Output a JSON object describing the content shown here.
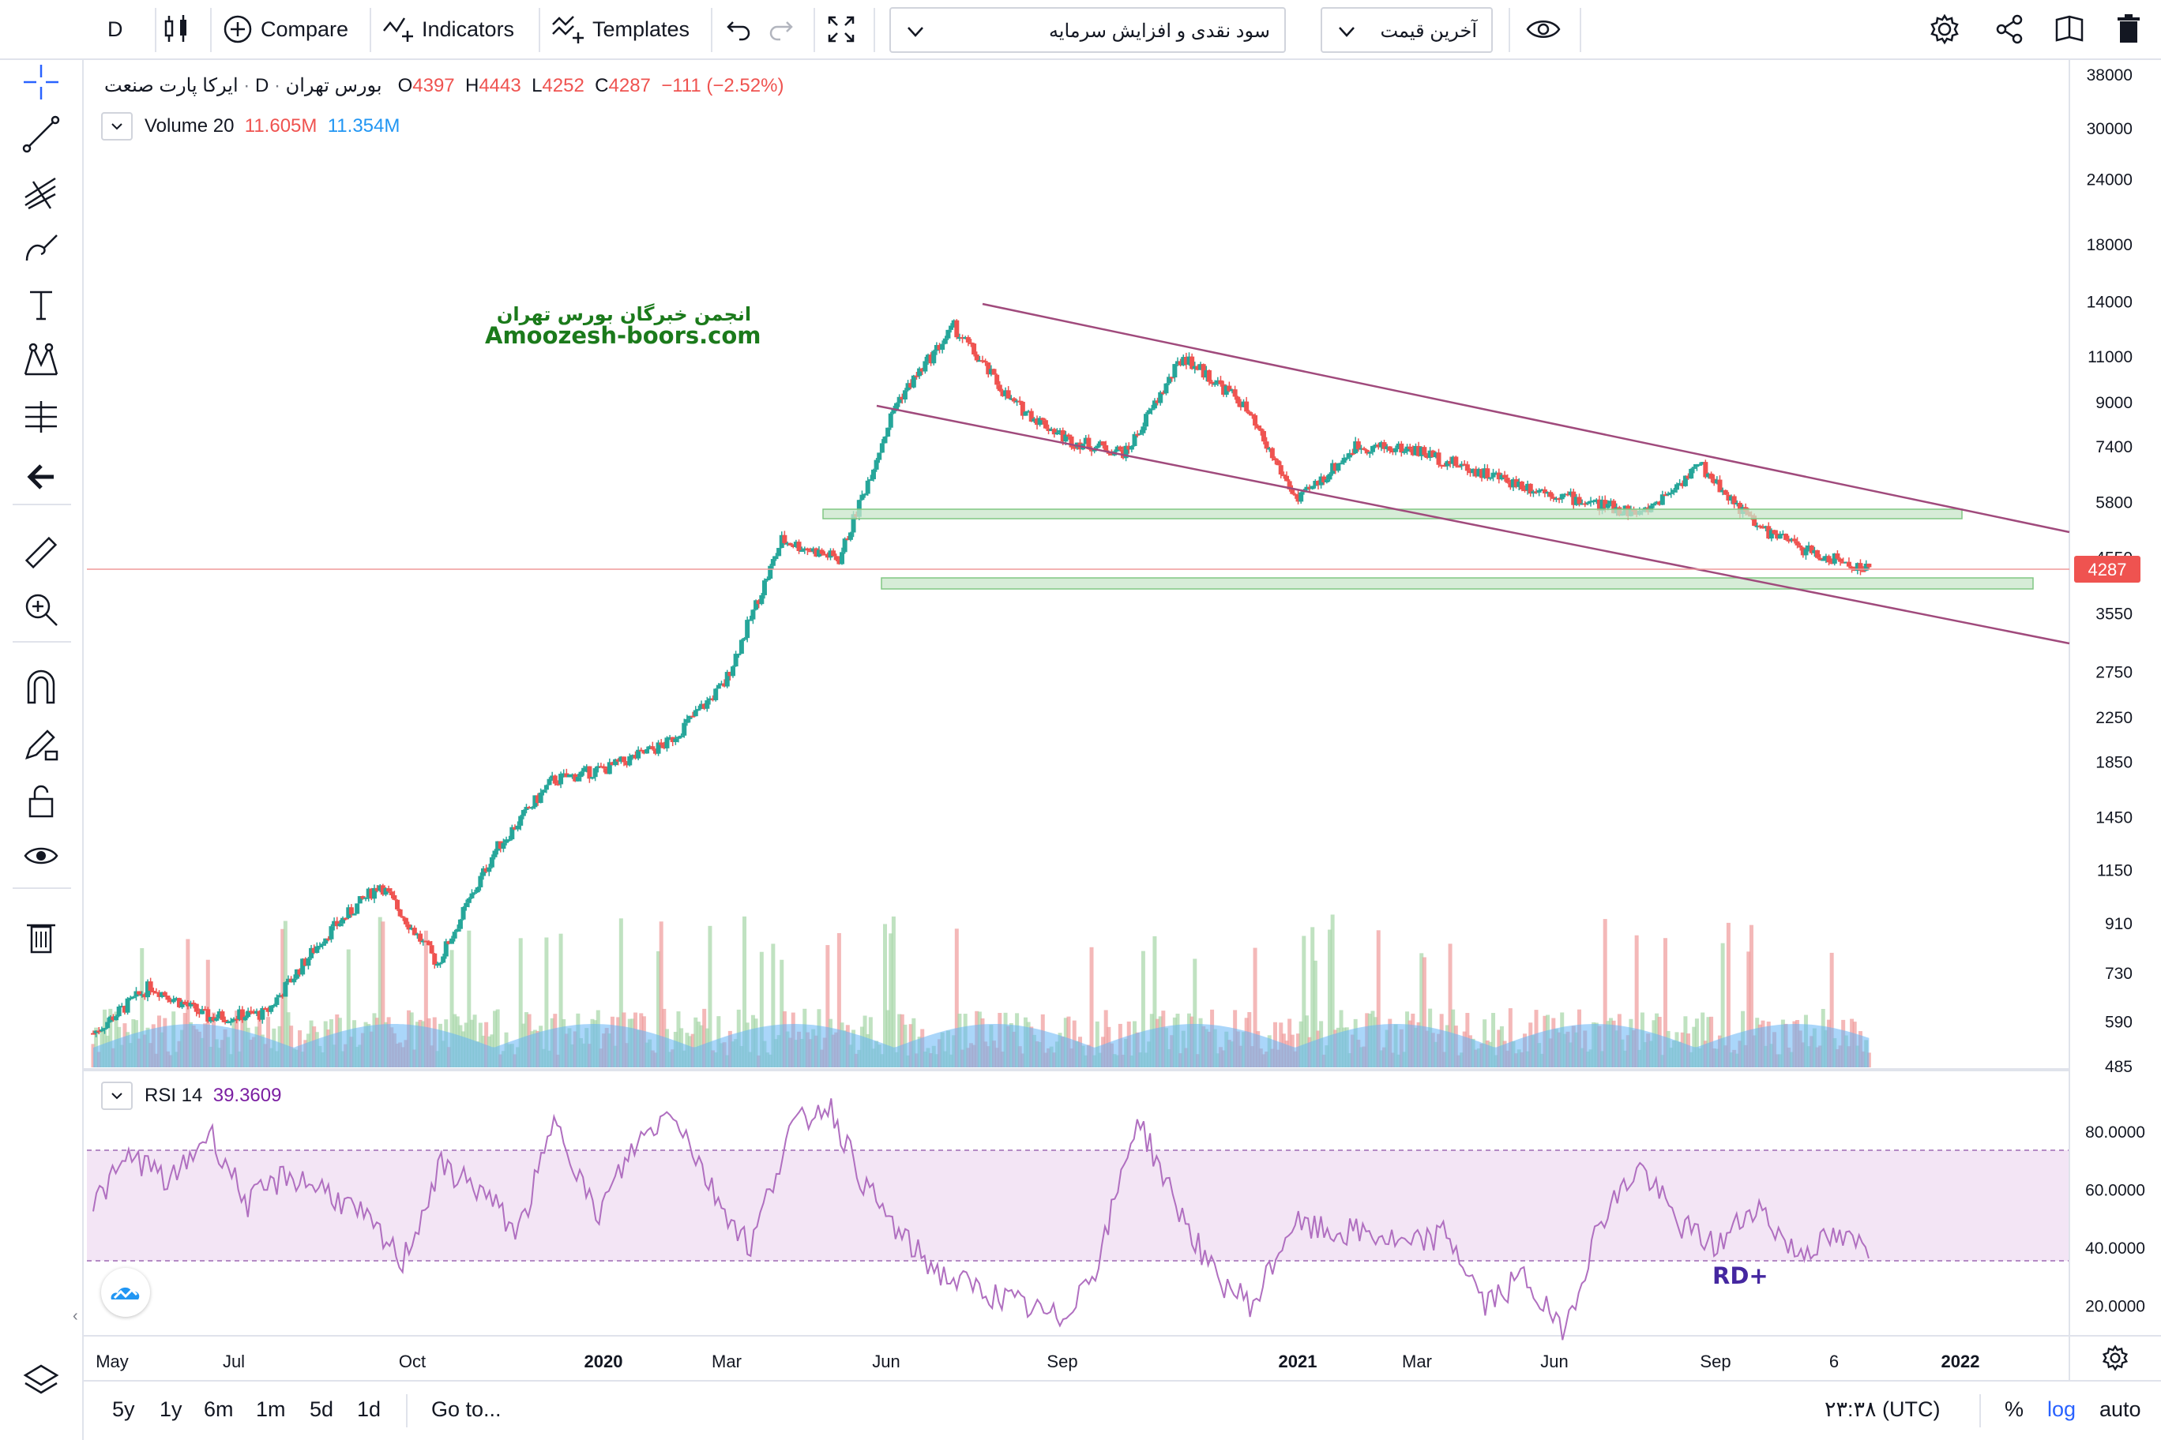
{
  "toolbar": {
    "interval": "D",
    "compare": "Compare",
    "indicators": "Indicators",
    "templates": "Templates",
    "symbol_dropdown": "سود نقدی و افزایش سرمایه",
    "price_dropdown": "آخرین قیمت"
  },
  "legend": {
    "symbol": "ایرکا پارت صنعت",
    "interval": "D",
    "exchange": "بورس تهران",
    "open_label": "O",
    "open": "4397",
    "high_label": "H",
    "high": "4443",
    "low_label": "L",
    "low": "4252",
    "close_label": "C",
    "close": "4287",
    "change": "−111 (−2.52%)",
    "volume_label": "Volume 20",
    "volume_value": "11.605M",
    "volume_ma": "11.354M",
    "rsi_label": "RSI 14",
    "rsi_value": "39.3609"
  },
  "watermark": {
    "line1": "انجمن خبرگان بورس تهران",
    "line2": "Amoozesh-boors.com"
  },
  "annotation": "RD+",
  "price_badge": "4287",
  "bottombar": {
    "ranges": [
      "5y",
      "1y",
      "6m",
      "1m",
      "5d",
      "1d"
    ],
    "goto": "Go to...",
    "time": "۲۳:۳۸ (UTC)",
    "percent": "%",
    "log": "log",
    "auto": "auto"
  },
  "colors": {
    "up": "#26a69a",
    "down": "#ef5350",
    "channel": "#a04a7c",
    "support_zone": "#c8e6c9",
    "rsi_line": "#b06fc0",
    "rsi_band": "#f3e5f5",
    "volume_ma_area": "#64b5f6",
    "accent": "#2962ff"
  },
  "chart_data": [
    {
      "type": "candlestick",
      "scale": "log",
      "ylim": [
        485,
        38000
      ],
      "x_ticks": [
        "May",
        "Jul",
        "Oct",
        "2020",
        "Mar",
        "Jun",
        "Sep",
        "2021",
        "Mar",
        "Jun",
        "Sep",
        "6",
        "2022"
      ],
      "y_ticks": [
        38000,
        30000,
        24000,
        18000,
        14000,
        11000,
        9000,
        7400,
        5800,
        4550,
        3550,
        2750,
        2250,
        1850,
        1450,
        1150,
        910,
        730,
        590,
        485
      ],
      "last_price": 4287,
      "approx_close_path": [
        {
          "x": "2019-05",
          "y": 560
        },
        {
          "x": "2019-06",
          "y": 690
        },
        {
          "x": "2019-07",
          "y": 600
        },
        {
          "x": "2019-08",
          "y": 610
        },
        {
          "x": "2019-09",
          "y": 850
        },
        {
          "x": "2019-10",
          "y": 1080
        },
        {
          "x": "2019-11",
          "y": 760
        },
        {
          "x": "2019-12",
          "y": 1250
        },
        {
          "x": "2020-01",
          "y": 1700
        },
        {
          "x": "2020-02",
          "y": 1800
        },
        {
          "x": "2020-03",
          "y": 2000
        },
        {
          "x": "2020-04",
          "y": 2600
        },
        {
          "x": "2020-05",
          "y": 4900
        },
        {
          "x": "2020-06",
          "y": 4500
        },
        {
          "x": "2020-07",
          "y": 9000
        },
        {
          "x": "2020-08",
          "y": 12500
        },
        {
          "x": "2020-09",
          "y": 9000
        },
        {
          "x": "2020-10",
          "y": 7600
        },
        {
          "x": "2020-11",
          "y": 7200
        },
        {
          "x": "2020-12",
          "y": 11000
        },
        {
          "x": "2021-01",
          "y": 9000
        },
        {
          "x": "2021-02",
          "y": 5800
        },
        {
          "x": "2021-03",
          "y": 7400
        },
        {
          "x": "2021-04",
          "y": 7300
        },
        {
          "x": "2021-05",
          "y": 6700
        },
        {
          "x": "2021-06",
          "y": 6200
        },
        {
          "x": "2021-07",
          "y": 5800
        },
        {
          "x": "2021-08",
          "y": 5500
        },
        {
          "x": "2021-09",
          "y": 6800
        },
        {
          "x": "2021-10",
          "y": 5200
        },
        {
          "x": "2021-11",
          "y": 4600
        },
        {
          "x": "2021-12",
          "y": 4287
        }
      ]
    },
    {
      "type": "line",
      "name": "RSI 14",
      "ylim": [
        10,
        95
      ],
      "y_ticks": [
        80,
        60,
        40,
        20
      ],
      "band": [
        30,
        70
      ],
      "approx_values": [
        55,
        72,
        62,
        80,
        55,
        65,
        60,
        50,
        35,
        68,
        60,
        45,
        85,
        50,
        75,
        88,
        60,
        40,
        80,
        90,
        60,
        42,
        30,
        25,
        20,
        15,
        35,
        85,
        55,
        30,
        20,
        48,
        45,
        45,
        40,
        45,
        20,
        30,
        10,
        50,
        68,
        48,
        40,
        55,
        38,
        43,
        40
      ]
    }
  ]
}
